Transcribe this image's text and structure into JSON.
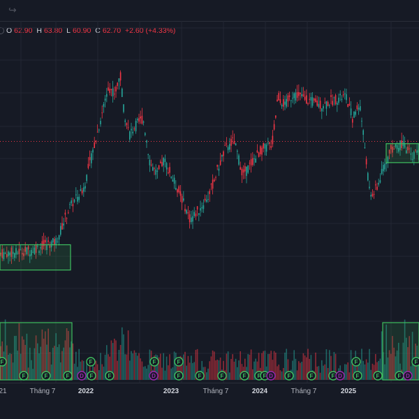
{
  "toolbar": {
    "redo_icon": "redo-icon"
  },
  "legend": {
    "o_key": "O",
    "o_val": "62.90",
    "h_key": "H",
    "h_val": "63.80",
    "l_key": "L",
    "l_val": "60.90",
    "c_key": "C",
    "c_val": "62.70",
    "change": "+2.60 (+4.33%)"
  },
  "colors": {
    "up": "#26a69a",
    "down": "#f23645",
    "box": "#3fbf5f",
    "bg": "#161a25",
    "event_f": "#3fbf5f",
    "event_d": "#9c27b0"
  },
  "chart_data": {
    "type": "candlestick",
    "x_ticks": [
      {
        "label": "21",
        "bold": false
      },
      {
        "label": "Tháng 7",
        "bold": false
      },
      {
        "label": "2022",
        "bold": true
      },
      {
        "label": "2023",
        "bold": true
      },
      {
        "label": "Tháng 7",
        "bold": false
      },
      {
        "label": "2024",
        "bold": true
      },
      {
        "label": "Tháng 7",
        "bold": false
      },
      {
        "label": "2025",
        "bold": true
      }
    ],
    "ylim": [
      8,
      92
    ],
    "close_path": [
      [
        0,
        27
      ],
      [
        40,
        28
      ],
      [
        80,
        31
      ],
      [
        100,
        42
      ],
      [
        120,
        48
      ],
      [
        140,
        66
      ],
      [
        155,
        80
      ],
      [
        165,
        78
      ],
      [
        172,
        84
      ],
      [
        178,
        72
      ],
      [
        185,
        65
      ],
      [
        195,
        68
      ],
      [
        205,
        70
      ],
      [
        215,
        56
      ],
      [
        225,
        52
      ],
      [
        235,
        57
      ],
      [
        245,
        52
      ],
      [
        258,
        46
      ],
      [
        272,
        38
      ],
      [
        285,
        41
      ],
      [
        300,
        46
      ],
      [
        312,
        54
      ],
      [
        322,
        60
      ],
      [
        335,
        63
      ],
      [
        348,
        52
      ],
      [
        360,
        56
      ],
      [
        375,
        60
      ],
      [
        390,
        62
      ],
      [
        398,
        77
      ],
      [
        408,
        74
      ],
      [
        420,
        78
      ],
      [
        440,
        76
      ],
      [
        460,
        74
      ],
      [
        480,
        76
      ],
      [
        495,
        77
      ],
      [
        505,
        70
      ],
      [
        515,
        75
      ],
      [
        522,
        62
      ],
      [
        530,
        45
      ],
      [
        540,
        48
      ],
      [
        550,
        55
      ],
      [
        560,
        60
      ],
      [
        575,
        62
      ],
      [
        590,
        58
      ],
      [
        600,
        60
      ]
    ],
    "price_line": 62.7,
    "boxes": [
      {
        "x0": 0,
        "x1": 101,
        "lo": 22,
        "hi": 30
      },
      {
        "x0": 553,
        "x1": 600,
        "lo": 56,
        "hi": 62
      }
    ],
    "volume_boxes": [
      {
        "x0": 0,
        "x1": 103
      },
      {
        "x0": 548,
        "x1": 600
      }
    ],
    "events": [
      {
        "x": 3,
        "t": "F",
        "row": 0
      },
      {
        "x": 34,
        "t": "F",
        "row": 1
      },
      {
        "x": 66,
        "t": "F",
        "row": 1
      },
      {
        "x": 97,
        "t": "F",
        "row": 1
      },
      {
        "x": 117,
        "t": "D",
        "row": 1
      },
      {
        "x": 130,
        "t": "F",
        "row": 0
      },
      {
        "x": 131,
        "t": "F",
        "row": 1
      },
      {
        "x": 157,
        "t": "F",
        "row": 1
      },
      {
        "x": 221,
        "t": "F",
        "row": 0
      },
      {
        "x": 220,
        "t": "D",
        "row": 1
      },
      {
        "x": 256,
        "t": "F",
        "row": 0
      },
      {
        "x": 256,
        "t": "F",
        "row": 1
      },
      {
        "x": 286,
        "t": "F",
        "row": 1
      },
      {
        "x": 318,
        "t": "F",
        "row": 1
      },
      {
        "x": 350,
        "t": "F",
        "row": 1
      },
      {
        "x": 371,
        "t": "F",
        "row": 1
      },
      {
        "x": 379,
        "t": "F",
        "row": 1
      },
      {
        "x": 388,
        "t": "D",
        "row": 1
      },
      {
        "x": 414,
        "t": "F",
        "row": 1
      },
      {
        "x": 446,
        "t": "F",
        "row": 1
      },
      {
        "x": 477,
        "t": "F",
        "row": 1
      },
      {
        "x": 487,
        "t": "D",
        "row": 1
      },
      {
        "x": 510,
        "t": "F",
        "row": 0
      },
      {
        "x": 512,
        "t": "F",
        "row": 1
      },
      {
        "x": 541,
        "t": "F",
        "row": 1
      },
      {
        "x": 572,
        "t": "F",
        "row": 1
      },
      {
        "x": 584,
        "t": "D",
        "row": 1
      },
      {
        "x": 596,
        "t": "F",
        "row": 0
      }
    ]
  }
}
